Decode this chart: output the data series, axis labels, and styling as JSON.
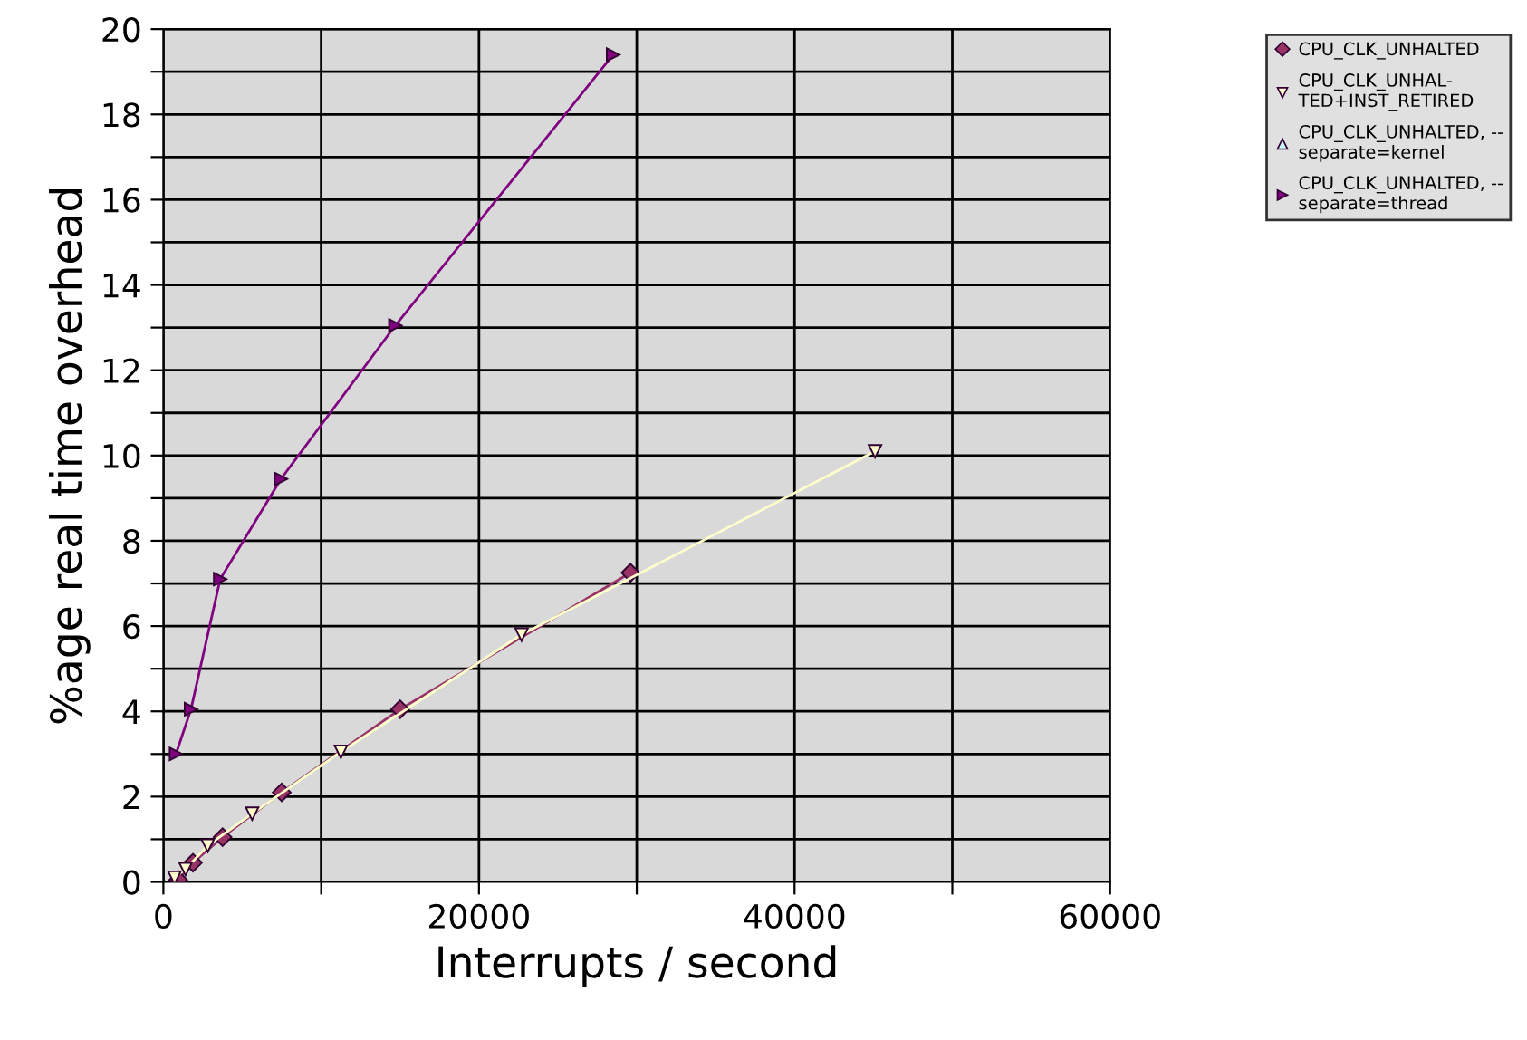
{
  "chart_data": {
    "type": "line",
    "xlabel": "Interrupts / second",
    "ylabel": "%age real time overhead",
    "xlim": [
      0,
      60000
    ],
    "ylim": [
      0,
      20
    ],
    "xticks": [
      0,
      {
        "value": 10000,
        "label": null
      },
      20000,
      {
        "value": 30000,
        "label": null
      },
      40000,
      {
        "value": 50000,
        "label": null
      },
      60000
    ],
    "yticks": [
      0,
      {
        "value": 1,
        "label": null
      },
      2,
      {
        "value": 3,
        "label": null
      },
      4,
      {
        "value": 5,
        "label": null
      },
      6,
      {
        "value": 7,
        "label": null
      },
      8,
      {
        "value": 9,
        "label": null
      },
      10,
      {
        "value": 11,
        "label": null
      },
      12,
      {
        "value": 13,
        "label": null
      },
      14,
      {
        "value": 15,
        "label": null
      },
      16,
      {
        "value": 17,
        "label": null
      },
      18,
      {
        "value": 19,
        "label": null
      },
      20
    ],
    "grid": true,
    "legend": "top right",
    "line_style": "solid",
    "series": [
      {
        "name": "CPU_CLK_UNHALTED",
        "color": "#993366",
        "marker": "diamond",
        "x": [
          938,
          1875,
          3750,
          7500,
          15000,
          29600
        ],
        "values": [
          0.05,
          0.45,
          1.05,
          2.1,
          4.05,
          7.25
        ]
      },
      {
        "name": "CPU_CLK_UNHAL-\nTED+INST_RETIRED",
        "color": "#ffffcc",
        "marker": "triangle_down",
        "x": [
          703,
          1406,
          2812,
          5625,
          11250,
          22700,
          45100
        ],
        "values": [
          0.1,
          0.3,
          0.85,
          1.6,
          3.05,
          5.8,
          10.1
        ]
      },
      {
        "name": "CPU_CLK_UNHALTED, --\nseparate=kernel",
        "color": "#ccffff",
        "marker": "triangle"
      },
      {
        "name": "CPU_CLK_UNHALTED, --\nseparate=thread",
        "color": "#800080",
        "marker": "triangle_right",
        "x": [
          800,
          1750,
          3600,
          7450,
          14700,
          28500
        ],
        "values": [
          3.0,
          4.05,
          7.1,
          9.45,
          13.05,
          19.4
        ]
      }
    ]
  }
}
